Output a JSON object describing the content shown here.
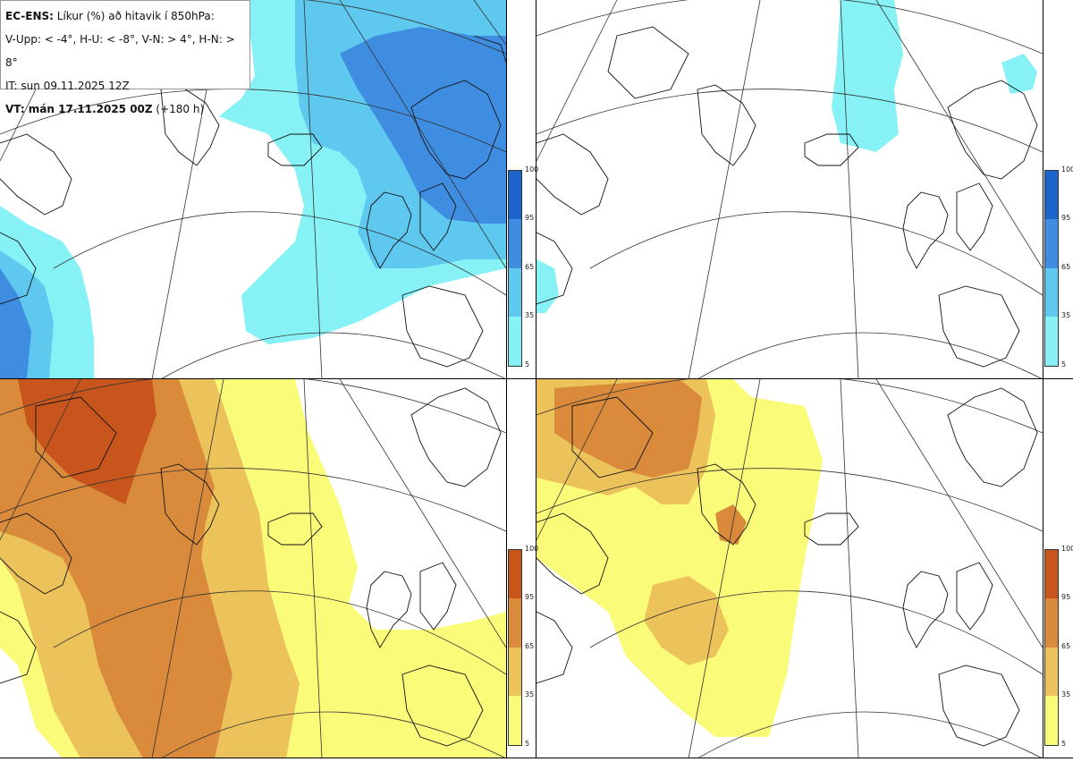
{
  "info": {
    "line1_bold": "EC-ENS:",
    "line1_rest": " Líkur (%) að hitavik í 850hPa:",
    "line2": "V-Upp: < -4°, H-U: < -8°, V-N: > 4°, H-N: > 8°",
    "line3": "IT: sun 09.11.2025 12Z",
    "line4_bold": "VT: mán 17.11.2025 00Z",
    "line4_rest": " (+180 h)"
  },
  "colorbars": {
    "ticks": [
      "100",
      "95",
      "65",
      "35",
      "5"
    ],
    "cold_colors": [
      "#1c64cc",
      "#3f8de0",
      "#5ec8ee",
      "#86f2f6"
    ],
    "warm_colors": [
      "#c8561c",
      "#d98a3a",
      "#ecc25a",
      "#fbfb7a"
    ]
  },
  "panels": [
    {
      "name": "V-Upp",
      "theme": "cold"
    },
    {
      "name": "H-U",
      "theme": "cold"
    },
    {
      "name": "V-N",
      "theme": "warm"
    },
    {
      "name": "H-N",
      "theme": "warm"
    }
  ]
}
